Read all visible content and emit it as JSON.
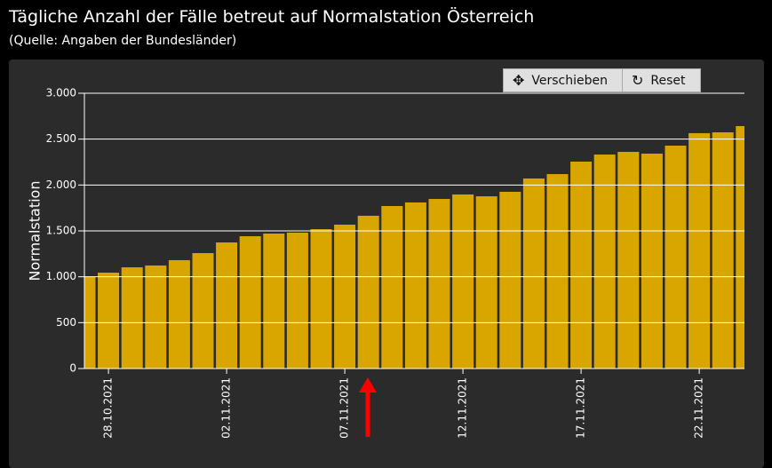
{
  "header": {
    "title": "Tägliche Anzahl der Fälle betreut auf Normalstation Österreich",
    "subtitle": "(Quelle: Angaben der Bundesländer)"
  },
  "toolbar": {
    "buttons": [
      "Verschieben",
      "Reset"
    ]
  },
  "chart_data": {
    "type": "bar",
    "ylabel": "Normalstation",
    "color": "#d9a600",
    "grid": true,
    "categories": [
      null,
      "28.10.2021",
      null,
      null,
      null,
      null,
      "02.11.2021",
      null,
      null,
      null,
      null,
      "07.11.2021",
      null,
      null,
      null,
      null,
      "12.11.2021",
      null,
      null,
      null,
      null,
      "17.11.2021",
      null,
      null,
      null,
      null,
      "22.11.2021",
      null,
      null
    ],
    "values": [
      997,
      1045,
      1103,
      1123,
      1181,
      1258,
      1374,
      1442,
      1471,
      1481,
      1519,
      1568,
      1665,
      1771,
      1810,
      1848,
      1897,
      1877,
      1926,
      2071,
      2119,
      2255,
      2332,
      2361,
      2342,
      2429,
      2565,
      2574,
      2642
    ],
    "ylim": [
      0,
      3000
    ],
    "yticks": [
      0,
      500,
      {
        "value": 1000,
        "label": "1.000"
      },
      {
        "value": 1500,
        "label": "1.500"
      },
      {
        "value": 2000,
        "label": "2.000"
      },
      {
        "value": 2500,
        "label": "2.500"
      },
      {
        "value": 3000,
        "label": "3.000"
      }
    ]
  }
}
